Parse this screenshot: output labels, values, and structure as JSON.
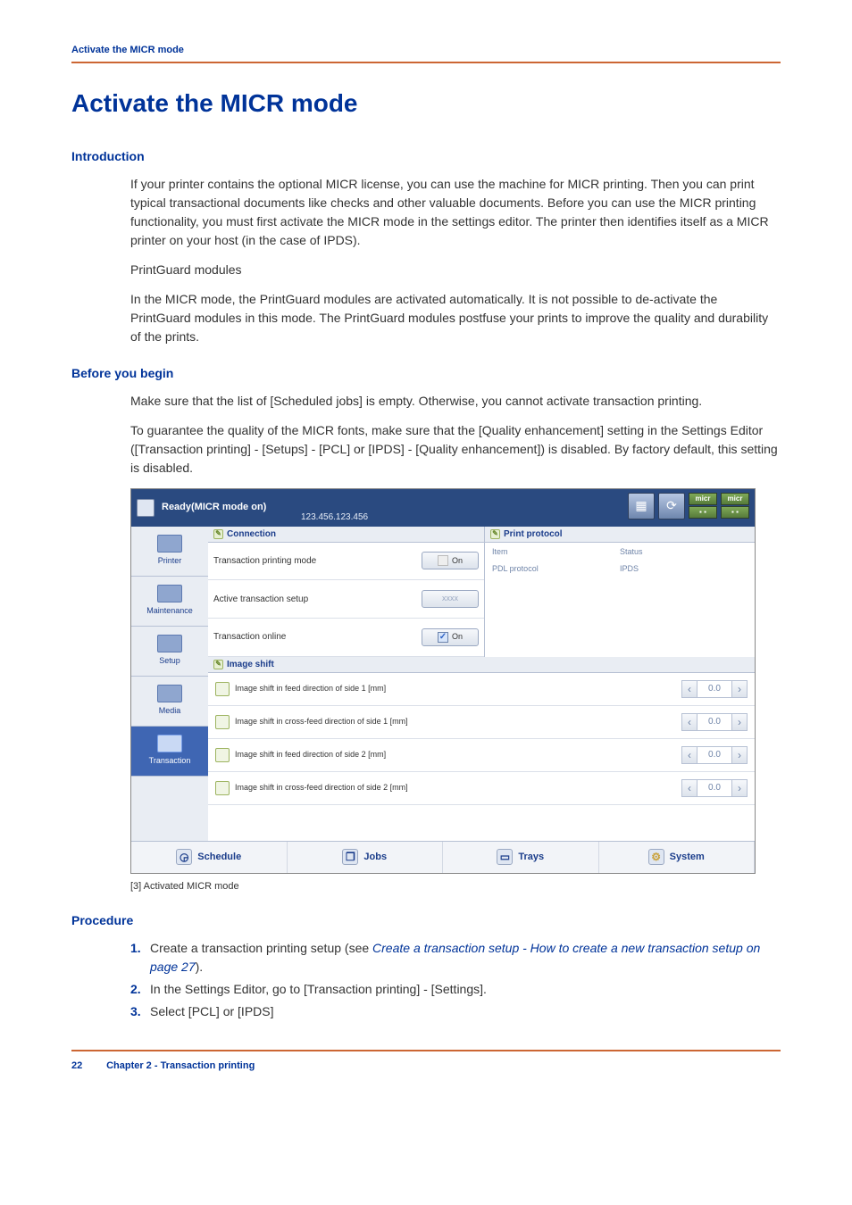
{
  "running_head": "Activate the MICR mode",
  "h1": "Activate the MICR mode",
  "intro": {
    "heading": "Introduction",
    "p1": "If your printer contains the optional MICR license, you can use the machine for MICR printing. Then you can print typical transactional documents like checks and other valuable documents. Before you can use the MICR printing functionality, you must first activate the MICR mode in the settings editor. The printer then identifies itself as a MICR printer on your host (in the case of IPDS).",
    "p2": "PrintGuard modules",
    "p3": "In the MICR mode, the PrintGuard modules are activated automatically. It is not possible to de-activate the PrintGuard modules in this mode. The PrintGuard modules postfuse your prints to improve the quality and durability of the prints."
  },
  "before": {
    "heading": "Before you begin",
    "p1": "Make sure that the list of [Scheduled jobs] is empty. Otherwise, you cannot activate transaction printing.",
    "p2": "To guarantee the quality of the MICR fonts, make sure that the [Quality enhancement] setting in the Settings Editor ([Transaction printing] - [Setups] - [PCL] or [IPDS] - [Quality enhancement]) is disabled. By factory default, this setting is disabled."
  },
  "caption": "[3] Activated MICR mode",
  "procedure": {
    "heading": "Procedure",
    "items": [
      {
        "n": "1.",
        "pre": "Create a transaction printing setup (see ",
        "link": "Create a transaction setup - How to create a new transaction setup",
        "linktail": " on page 27",
        "post": ")."
      },
      {
        "n": "2.",
        "pre": "In the Settings Editor, go to [Transaction printing] - [Settings].",
        "link": "",
        "linktail": "",
        "post": ""
      },
      {
        "n": "3.",
        "pre": "Select [PCL] or [IPDS]",
        "link": "",
        "linktail": "",
        "post": ""
      }
    ]
  },
  "footer": {
    "page": "22",
    "chapter": "Chapter 2 - Transaction printing"
  },
  "shot": {
    "titlebar": {
      "title": "Ready(MICR mode on)",
      "subtitle": "123.456.123.456",
      "micr": "micr"
    },
    "nav": [
      {
        "label": "Printer"
      },
      {
        "label": "Maintenance"
      },
      {
        "label": "Setup"
      },
      {
        "label": "Media"
      },
      {
        "label": "Transaction"
      }
    ],
    "connection": {
      "heading": "Connection",
      "rows": [
        {
          "label": "Transaction printing mode",
          "btn": "On",
          "checked": false
        },
        {
          "label": "Active transaction setup",
          "btn": "xxxx",
          "checked": null
        },
        {
          "label": "Transaction online",
          "btn": "On",
          "checked": true
        }
      ]
    },
    "protocol": {
      "heading": "Print protocol",
      "col1h": "Item",
      "col2h": "Status",
      "col1v": "PDL protocol",
      "col2v": "IPDS"
    },
    "imageshift": {
      "heading": "Image shift",
      "rows": [
        {
          "label": "Image shift in feed direction of side 1 [mm]",
          "val": "0.0"
        },
        {
          "label": "Image shift in cross-feed direction of side 1 [mm]",
          "val": "0.0"
        },
        {
          "label": "Image shift in feed direction of side 2 [mm]",
          "val": "0.0"
        },
        {
          "label": "Image shift in cross-feed direction of side 2 [mm]",
          "val": "0.0"
        }
      ]
    },
    "bottom": [
      {
        "label": "Schedule"
      },
      {
        "label": "Jobs"
      },
      {
        "label": "Trays"
      },
      {
        "label": "System"
      }
    ]
  },
  "colors": {
    "brand_blue": "#003399",
    "rule_orange": "#cc6633",
    "titlebar_bg": "#2a4a80",
    "panel_bg": "#e9edf3",
    "nav_active_bg": "#3f66b3"
  }
}
